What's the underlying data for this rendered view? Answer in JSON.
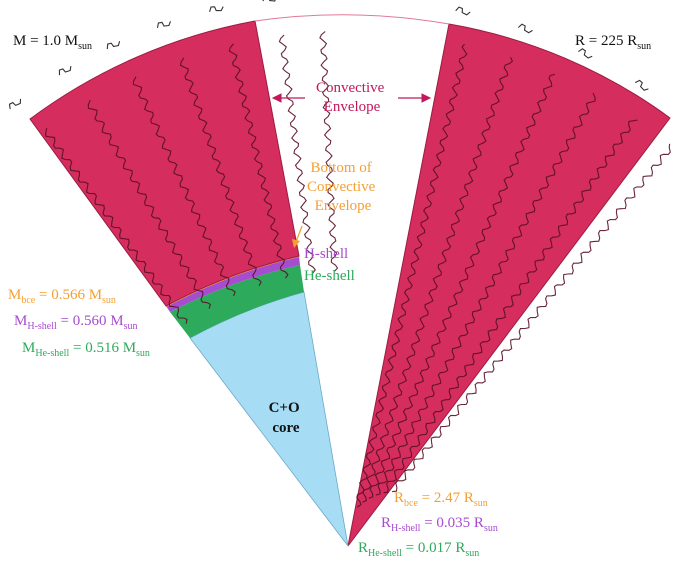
{
  "colors": {
    "envelope": "#d42d5e",
    "envelope_stroke": "#9a1c42",
    "h_shell": "#a64ccf",
    "he_shell": "#2eaa5c",
    "core": "#a7dcf5",
    "bce": "#f3a033",
    "convective_label": "#c2185b",
    "arrow": "#c2185b",
    "mass_black": "#111111"
  },
  "icons": {
    "convection": "wavy-convection-line-icon",
    "arrow": "double-headed-arrow-icon"
  },
  "labels": {
    "mass": {
      "prefix": "M = 1.0 M",
      "sub": "sun"
    },
    "radius": {
      "prefix": "R = 225 R",
      "sub": "sun"
    },
    "convective_envelope": [
      "Convective",
      "Envelope"
    ],
    "bottom_convective_envelope": [
      "Bottom of",
      "Convective",
      "Envelope"
    ],
    "h_shell": "H-shell",
    "he_shell": "He-shell",
    "core": [
      "C+O",
      "core"
    ],
    "m_bce": {
      "main": "M",
      "sub": "bce",
      "eq": " = 0.566 M",
      "unit": "sun"
    },
    "m_hshell": {
      "main": "M",
      "sub": "H-shell",
      "eq": " = 0.560 M",
      "unit": "sun"
    },
    "m_heshell": {
      "main": "M",
      "sub": "He-shell",
      "eq": " = 0.516 M",
      "unit": "sun"
    },
    "r_bce": {
      "main": "R",
      "sub": "bce",
      "eq": " = 2.47 R",
      "unit": "sun"
    },
    "r_hshell": {
      "main": "R",
      "sub": "H-shell",
      "eq": " = 0.035 R",
      "unit": "sun"
    },
    "r_heshell": {
      "main": "R",
      "sub": "He-shell",
      "eq": " = 0.017 R",
      "unit": "sun"
    }
  }
}
